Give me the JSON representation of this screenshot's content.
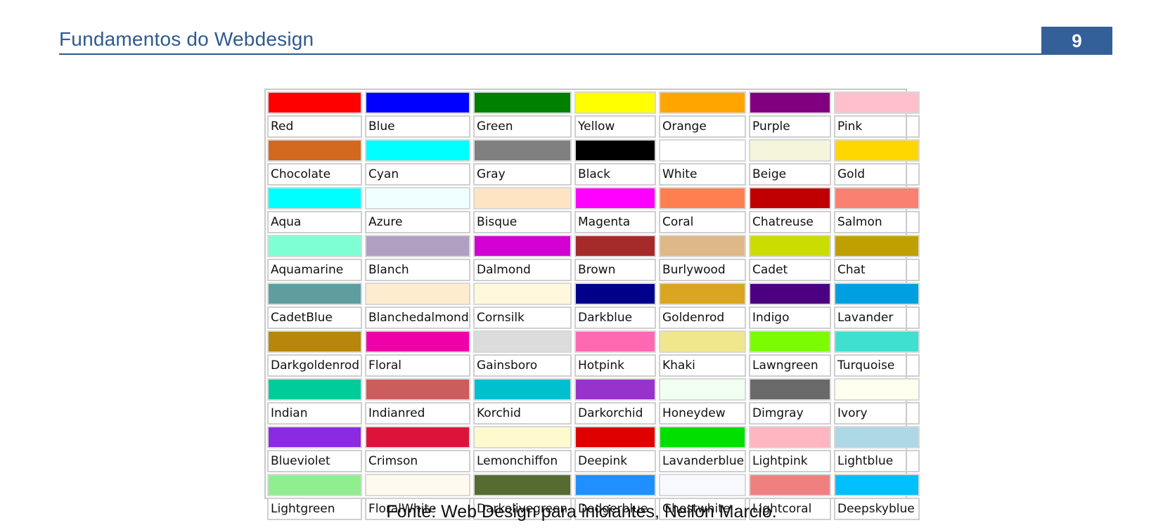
{
  "header": {
    "title": "Fundamentos do Webdesign",
    "page_number": "9"
  },
  "colors": [
    {
      "name": "Red",
      "hex": "#ff0000"
    },
    {
      "name": "Blue",
      "hex": "#0000ff"
    },
    {
      "name": "Green",
      "hex": "#008000"
    },
    {
      "name": "Yellow",
      "hex": "#ffff00"
    },
    {
      "name": "Orange",
      "hex": "#ffa500"
    },
    {
      "name": "Purple",
      "hex": "#800080"
    },
    {
      "name": "Pink",
      "hex": "#ffc0cb"
    },
    {
      "name": "Chocolate",
      "hex": "#d2691e"
    },
    {
      "name": "Cyan",
      "hex": "#00ffff"
    },
    {
      "name": "Gray",
      "hex": "#808080"
    },
    {
      "name": "Black",
      "hex": "#000000"
    },
    {
      "name": "White",
      "hex": "#ffffff"
    },
    {
      "name": "Beige",
      "hex": "#f5f5dc"
    },
    {
      "name": "Gold",
      "hex": "#ffd700"
    },
    {
      "name": "Aqua",
      "hex": "#00ffff"
    },
    {
      "name": "Azure",
      "hex": "#f0ffff"
    },
    {
      "name": "Bisque",
      "hex": "#ffe4c4"
    },
    {
      "name": "Magenta",
      "hex": "#ff00ff"
    },
    {
      "name": "Coral",
      "hex": "#ff7f50"
    },
    {
      "name": "Chatreuse",
      "hex": "#c00000"
    },
    {
      "name": "Salmon",
      "hex": "#fa8072"
    },
    {
      "name": "Aquamarine",
      "hex": "#7fffd4"
    },
    {
      "name": "Blanch",
      "hex": "#b09fc0"
    },
    {
      "name": "Dalmond",
      "hex": "#d200d2"
    },
    {
      "name": "Brown",
      "hex": "#a52a2a"
    },
    {
      "name": "Burlywood",
      "hex": "#deb887"
    },
    {
      "name": "Cadet",
      "hex": "#cbdc00"
    },
    {
      "name": "Chat",
      "hex": "#c0a000"
    },
    {
      "name": "CadetBlue",
      "hex": "#5f9ea0"
    },
    {
      "name": "Blanchedalmond",
      "hex": "#ffebcd"
    },
    {
      "name": "Cornsilk",
      "hex": "#fff8dc"
    },
    {
      "name": "Darkblue",
      "hex": "#00008b"
    },
    {
      "name": "Goldenrod",
      "hex": "#daa520"
    },
    {
      "name": "Indigo",
      "hex": "#4b0082"
    },
    {
      "name": "Lavander",
      "hex": "#00a0e0"
    },
    {
      "name": "Darkgoldenrod",
      "hex": "#b8860b"
    },
    {
      "name": "Floral",
      "hex": "#f000a8"
    },
    {
      "name": "Gainsboro",
      "hex": "#dcdcdc"
    },
    {
      "name": "Hotpink",
      "hex": "#ff69b4"
    },
    {
      "name": "Khaki",
      "hex": "#f0e68c"
    },
    {
      "name": "Lawngreen",
      "hex": "#7cfc00"
    },
    {
      "name": "Turquoise",
      "hex": "#40e0d0"
    },
    {
      "name": "Indian",
      "hex": "#00cc99"
    },
    {
      "name": "Indianred",
      "hex": "#cd5c5c"
    },
    {
      "name": "Korchid",
      "hex": "#00c0d0"
    },
    {
      "name": "Darkorchid",
      "hex": "#9932cc"
    },
    {
      "name": "Honeydew",
      "hex": "#f0fff0"
    },
    {
      "name": "Dimgray",
      "hex": "#696969"
    },
    {
      "name": "Ivory",
      "hex": "#fffff0"
    },
    {
      "name": "Blueviolet",
      "hex": "#8a2be2"
    },
    {
      "name": "Crimson",
      "hex": "#dc143c"
    },
    {
      "name": "Lemonchiffon",
      "hex": "#fffacd"
    },
    {
      "name": "Deepink",
      "hex": "#e00000"
    },
    {
      "name": "Lavanderblue",
      "hex": "#00e000"
    },
    {
      "name": "Lightpink",
      "hex": "#ffb6c1"
    },
    {
      "name": "Lightblue",
      "hex": "#add8e6"
    },
    {
      "name": "Lightgreen",
      "hex": "#90ee90"
    },
    {
      "name": "FloralWhite",
      "hex": "#fffaf0"
    },
    {
      "name": "Darkolivegreen",
      "hex": "#556b2f"
    },
    {
      "name": "Dodgerblue",
      "hex": "#1e90ff"
    },
    {
      "name": "Ghostwhite",
      "hex": "#f8f8ff"
    },
    {
      "name": "Lightcoral",
      "hex": "#f08080"
    },
    {
      "name": "Deepskyblue",
      "hex": "#00bfff"
    }
  ],
  "caption": "Fonte: Web Design para iniciantes, Neilon Marcio."
}
